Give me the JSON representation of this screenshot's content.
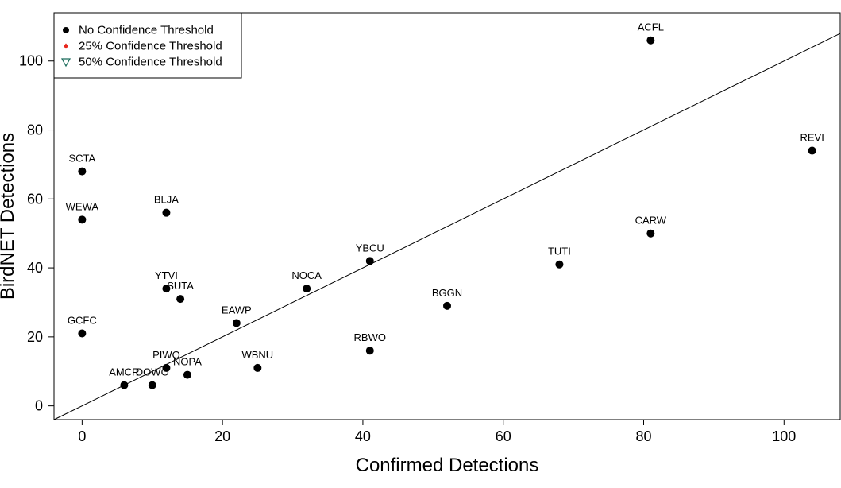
{
  "chart_data": {
    "type": "scatter",
    "xlabel": "Confirmed Detections",
    "ylabel": "BirdNET Detections",
    "xlim": [
      -4,
      108
    ],
    "ylim": [
      -4,
      114
    ],
    "xticks": [
      0,
      20,
      40,
      60,
      80,
      100
    ],
    "yticks": [
      0,
      20,
      40,
      60,
      80,
      100
    ],
    "grid": false,
    "reference_line": {
      "slope": 1,
      "intercept": 0
    },
    "legend": {
      "placement": "top-left",
      "entries": [
        {
          "label": "No Confidence Threshold",
          "marker": "circle",
          "color": "#000000"
        },
        {
          "label": "25% Confidence Threshold",
          "marker": "diamond",
          "color": "#e8281e"
        },
        {
          "label": "50% Confidence Threshold",
          "marker": "triangle-down",
          "color": "#1a6b5a"
        }
      ]
    },
    "series": [
      {
        "name": "No Confidence Threshold",
        "points": [
          {
            "label": "ACFL",
            "x": 81,
            "y": 106
          },
          {
            "label": "REVI",
            "x": 104,
            "y": 74
          },
          {
            "label": "SCTA",
            "x": 0,
            "y": 68
          },
          {
            "label": "WEWA",
            "x": 0,
            "y": 54
          },
          {
            "label": "BLJA",
            "x": 12,
            "y": 56
          },
          {
            "label": "CARW",
            "x": 81,
            "y": 50
          },
          {
            "label": "YBCU",
            "x": 41,
            "y": 42
          },
          {
            "label": "TUTI",
            "x": 68,
            "y": 41
          },
          {
            "label": "YTVI",
            "x": 12,
            "y": 34
          },
          {
            "label": "NOCA",
            "x": 32,
            "y": 34
          },
          {
            "label": "SUTA",
            "x": 14,
            "y": 31
          },
          {
            "label": "BGGN",
            "x": 52,
            "y": 29
          },
          {
            "label": "EAWP",
            "x": 22,
            "y": 24
          },
          {
            "label": "GCFC",
            "x": 0,
            "y": 21
          },
          {
            "label": "RBWO",
            "x": 41,
            "y": 16
          },
          {
            "label": "PIWO",
            "x": 12,
            "y": 11
          },
          {
            "label": "WBNU",
            "x": 25,
            "y": 11
          },
          {
            "label": "NOPA",
            "x": 15,
            "y": 9
          },
          {
            "label": "AMCR",
            "x": 6,
            "y": 6
          },
          {
            "label": "DOWO",
            "x": 10,
            "y": 6
          }
        ]
      }
    ]
  }
}
